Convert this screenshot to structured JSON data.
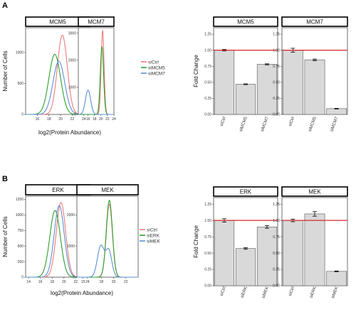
{
  "colors": {
    "ctrl": "#f07a7a",
    "kd1": "#2ca02c",
    "kd2": "#5b8fd6",
    "ref_line": "#d62728",
    "bar_fill": "#d9d9d9",
    "bar_stroke": "#555555"
  },
  "chart_data": [
    {
      "id": "A-hist",
      "type": "line",
      "panel_label": "A",
      "xlabel": "log2(Protein Abundance)",
      "ylabel": "Number of Cells",
      "legend": [
        "siCtrl",
        "siMCM5",
        "siMCM7"
      ],
      "legend_position": "right",
      "facets": [
        {
          "title": "MCM5",
          "xlim": [
            14,
            25
          ],
          "ylim": [
            0,
            1400
          ],
          "xticks": [
            "16",
            "18",
            "20",
            "22",
            "24"
          ],
          "yticks": [
            "0",
            "500",
            "1000"
          ],
          "series": [
            {
              "name": "siCtrl",
              "color": "#f07a7a",
              "curves": [
                {
                  "mu": 20.3,
                  "sd": 0.85,
                  "amp": 1280
                }
              ]
            },
            {
              "name": "siMCM5",
              "color": "#2ca02c",
              "curves": [
                {
                  "mu": 19.0,
                  "sd": 1.0,
                  "amp": 970
                }
              ]
            },
            {
              "name": "siMCM7",
              "color": "#5b8fd6",
              "curves": [
                {
                  "mu": 19.7,
                  "sd": 1.0,
                  "amp": 860
                }
              ]
            }
          ]
        },
        {
          "title": "MCM7",
          "xlim": [
            13,
            24
          ],
          "ylim": [
            0,
            3200
          ],
          "xticks": [
            "16",
            "18",
            "20",
            "22",
            "24"
          ],
          "yticks": [
            "0",
            "1000",
            "2000",
            "3000"
          ],
          "series": [
            {
              "name": "siCtrl",
              "color": "#f07a7a",
              "curves": [
                {
                  "mu": 20.5,
                  "sd": 0.45,
                  "amp": 3100
                }
              ]
            },
            {
              "name": "siMCM5",
              "color": "#2ca02c",
              "curves": [
                {
                  "mu": 20.3,
                  "sd": 0.5,
                  "amp": 2500
                }
              ]
            },
            {
              "name": "siMCM7",
              "color": "#5b8fd6",
              "curves": [
                {
                  "mu": 16.0,
                  "sd": 0.8,
                  "amp": 900
                }
              ]
            }
          ]
        }
      ]
    },
    {
      "id": "A-bar",
      "type": "bar",
      "ylabel": "Fold Change",
      "ylim": [
        0,
        1.35
      ],
      "ref_line": 1.0,
      "yticks": [
        "0.00",
        "0.25",
        "0.50",
        "0.75",
        "1.00",
        "1.25"
      ],
      "facets": [
        {
          "title": "MCM5",
          "categories": [
            "siCtrl",
            "siMCM5",
            "siMCM7"
          ],
          "values": [
            1.0,
            0.47,
            0.78
          ],
          "errors": [
            0.012,
            0.006,
            0.008
          ]
        },
        {
          "title": "MCM7",
          "categories": [
            "siCtrl",
            "siMCM5",
            "siMCM7"
          ],
          "values": [
            1.0,
            0.85,
            0.09
          ],
          "errors": [
            0.03,
            0.012,
            0.005
          ]
        }
      ]
    },
    {
      "id": "B-hist",
      "type": "line",
      "panel_label": "B",
      "xlabel": "log2(Protein Abundance)",
      "ylabel": "Number of Cells",
      "legend": [
        "siCtrl",
        "siERK",
        "siMEK"
      ],
      "legend_position": "right",
      "facets": [
        {
          "title": "ERK",
          "xlim": [
            13.5,
            24.5
          ],
          "ylim": [
            0,
            1300
          ],
          "xticks": [
            "14",
            "16",
            "18",
            "20",
            "22",
            "24"
          ],
          "yticks": [
            "0",
            "250",
            "500",
            "750",
            "1000",
            "1250"
          ],
          "series": [
            {
              "name": "siCtrl",
              "color": "#f07a7a",
              "curves": [
                {
                  "mu": 19.5,
                  "sd": 0.8,
                  "amp": 1200
                }
              ]
            },
            {
              "name": "siERK",
              "color": "#2ca02c",
              "curves": [
                {
                  "mu": 18.5,
                  "sd": 0.9,
                  "amp": 1070
                }
              ]
            },
            {
              "name": "siMEK",
              "color": "#5b8fd6",
              "curves": [
                {
                  "mu": 19.2,
                  "sd": 0.85,
                  "amp": 1150
                }
              ]
            }
          ]
        },
        {
          "title": "MEK",
          "xlim": [
            14,
            24
          ],
          "ylim": [
            0,
            2600
          ],
          "xticks": [
            "15",
            "18",
            "20",
            "22"
          ],
          "yticks": [
            "0",
            "1000",
            "2000"
          ],
          "series": [
            {
              "name": "siCtrl",
              "color": "#f07a7a",
              "curves": [
                {
                  "mu": 19.3,
                  "sd": 0.5,
                  "amp": 2350
                }
              ]
            },
            {
              "name": "siERK",
              "color": "#2ca02c",
              "curves": [
                {
                  "mu": 19.3,
                  "sd": 0.5,
                  "amp": 2470
                }
              ]
            },
            {
              "name": "siMEK",
              "color": "#5b8fd6",
              "curves": [
                {
                  "mu": 17.9,
                  "sd": 0.55,
                  "amp": 1000
                },
                {
                  "mu": 19.2,
                  "sd": 0.5,
                  "amp": 850
                }
              ]
            }
          ]
        }
      ]
    },
    {
      "id": "B-bar",
      "type": "bar",
      "ylabel": "Fold Change",
      "ylim": [
        0,
        1.35
      ],
      "ref_line": 1.0,
      "yticks": [
        "0.00",
        "0.25",
        "0.50",
        "0.75",
        "1.00",
        "1.25"
      ],
      "facets": [
        {
          "title": "ERK",
          "categories": [
            "siCtrl",
            "siERK",
            "siMEK"
          ],
          "values": [
            1.0,
            0.57,
            0.9
          ],
          "errors": [
            0.025,
            0.012,
            0.02
          ]
        },
        {
          "title": "MEK",
          "categories": [
            "siCtrl",
            "siERK",
            "siMEK"
          ],
          "values": [
            1.0,
            1.1,
            0.22
          ],
          "errors": [
            0.02,
            0.035,
            0.006
          ]
        }
      ]
    }
  ]
}
